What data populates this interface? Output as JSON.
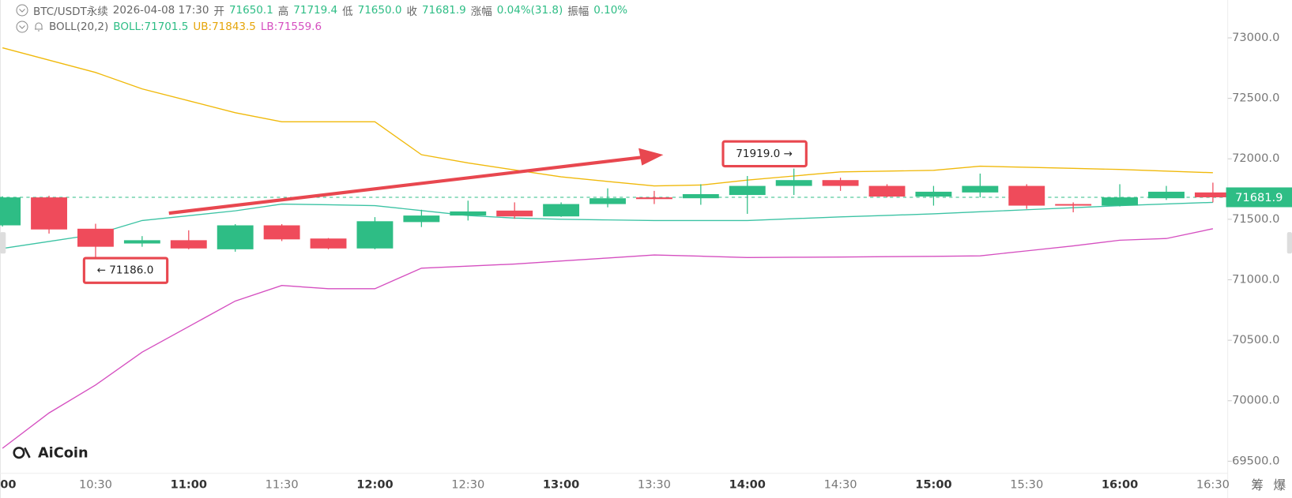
{
  "header": {
    "symbol": "BTC/USDT永续",
    "time": "2026-04-08 17:30",
    "open_label": "开",
    "open": "71650.1",
    "high_label": "高",
    "high": "71719.4",
    "low_label": "低",
    "low": "71650.0",
    "close_label": "收",
    "close": "71681.9",
    "change_label": "涨幅",
    "change": "0.04%(31.8)",
    "amp_label": "振幅",
    "amp": "0.10%",
    "indicator": "BOLL(20,2)",
    "boll": "BOLL:71701.5",
    "ub": "UB:71843.5",
    "lb": "LB:71559.6"
  },
  "logo": "AiCoin",
  "side_buttons": [
    "筹",
    "爆"
  ],
  "chart_data": {
    "type": "candlestick",
    "categories": [
      "00",
      null,
      "10:30",
      null,
      "11:00",
      null,
      "11:30",
      null,
      "12:00",
      null,
      "12:30",
      null,
      "13:00",
      null,
      "13:30",
      null,
      "14:00",
      null,
      "14:30",
      null,
      "15:00",
      null,
      "15:30",
      null,
      "16:00",
      null,
      "16:30"
    ],
    "open": [
      71450,
      71681,
      71422,
      71300,
      71327,
      71252,
      71450,
      71341,
      71259,
      71477,
      71531,
      71572,
      71524,
      71626,
      71681,
      71674,
      71701,
      71776,
      71824,
      71776,
      71688,
      71722,
      71776,
      71626,
      71613,
      71674,
      71722
    ],
    "high": [
      71690,
      71695,
      71463,
      71361,
      71409,
      71460,
      71460,
      71345,
      71518,
      71579,
      71654,
      71640,
      71640,
      71756,
      71735,
      71790,
      71858,
      71919,
      71844,
      71790,
      71776,
      71878,
      71790,
      71640,
      71790,
      71776,
      71803
    ],
    "low": [
      71440,
      71382,
      71186,
      71273,
      71252,
      71232,
      71320,
      71252,
      71252,
      71436,
      71490,
      71504,
      71520,
      71599,
      71626,
      71620,
      71545,
      71701,
      71735,
      71680,
      71613,
      71681,
      71586,
      71558,
      71606,
      71660,
      71640
    ],
    "close": [
      71681,
      71416,
      71273,
      71327,
      71259,
      71450,
      71334,
      71259,
      71484,
      71531,
      71565,
      71524,
      71626,
      71674,
      71667,
      71708,
      71776,
      71824,
      71776,
      71688,
      71728,
      71776,
      71613,
      71613,
      71681,
      71728,
      71682
    ],
    "up_color": "#2ebd85",
    "down_color": "#ef4b5b",
    "series": [
      {
        "name": "BOLL",
        "color": "#3cc3a4",
        "values": [
          71259,
          71317,
          71375,
          71490,
          71530,
          71570,
          71626,
          71620,
          71613,
          71572,
          71531,
          71510,
          71500,
          71495,
          71490,
          71490,
          71490,
          71505,
          71520,
          71532,
          71545,
          71562,
          71579,
          71596,
          71613,
          71627,
          71640
        ]
      },
      {
        "name": "UB",
        "color": "#f0b90b",
        "values": [
          72918,
          72816,
          72714,
          72578,
          72480,
          72381,
          72306,
          72306,
          72306,
          72034,
          71966,
          71908,
          71851,
          71813,
          71776,
          71783,
          71824,
          71858,
          71892,
          71898,
          71905,
          71939,
          71930,
          71921,
          71912,
          71898,
          71885
        ]
      },
      {
        "name": "LB",
        "color": "#d54fc0",
        "values": [
          69607,
          69899,
          70130,
          70402,
          70613,
          70824,
          70953,
          70926,
          70926,
          71096,
          71113,
          71130,
          71155,
          71180,
          71205,
          71195,
          71184,
          71186,
          71188,
          71191,
          71194,
          71198,
          71239,
          71280,
          71327,
          71341,
          71422
        ]
      }
    ],
    "ylim": [
      69400,
      73313
    ],
    "yticks": [
      {
        "value": 69500,
        "label": "69500.0"
      },
      {
        "value": 70000,
        "label": "70000.0"
      },
      {
        "value": 70500,
        "label": "70500.0"
      },
      {
        "value": 71000,
        "label": "71000.0"
      },
      {
        "value": 71500,
        "label": "71500.0"
      },
      {
        "value": 72000,
        "label": "72000.0"
      },
      {
        "value": 72500,
        "label": "72500.0"
      },
      {
        "value": 73000,
        "label": "73000.0"
      }
    ],
    "last_price": 71681.9,
    "annotations": [
      {
        "text": "← 71186.0",
        "candle": 2
      },
      {
        "text": "71919.0 →",
        "candle": 17
      }
    ]
  }
}
